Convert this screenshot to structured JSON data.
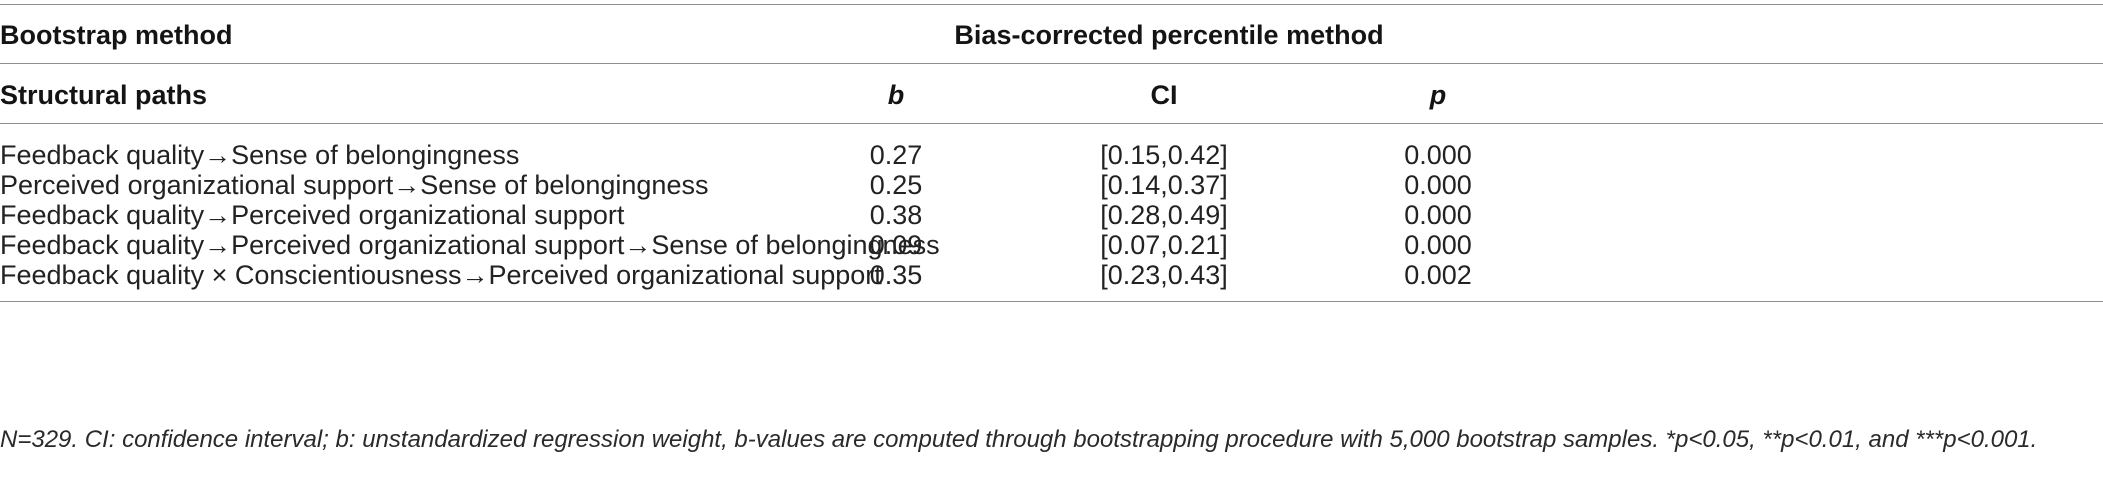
{
  "table": {
    "header_row1": {
      "left": "Bootstrap method",
      "right": "Bias-corrected percentile method"
    },
    "header_row2": {
      "paths": "Structural paths",
      "b": "b",
      "ci": "CI",
      "p": "p"
    },
    "rows": [
      {
        "path": "Feedback quality→Sense of belongingness",
        "b": "0.27",
        "ci": "[0.15,0.42]",
        "p": "0.000"
      },
      {
        "path": "Perceived organizational support→Sense of belongingness",
        "b": "0.25",
        "ci": "[0.14,0.37]",
        "p": "0.000"
      },
      {
        "path": "Feedback quality→Perceived organizational support",
        "b": "0.38",
        "ci": "[0.28,0.49]",
        "p": "0.000"
      },
      {
        "path": "Feedback quality→Perceived organizational support→Sense of belongingness",
        "b": "0.09",
        "ci": "[0.07,0.21]",
        "p": "0.000"
      },
      {
        "path": "Feedback quality × Conscientiousness→Perceived organizational support",
        "b": "0.35",
        "ci": "[0.23,0.43]",
        "p": "0.002"
      }
    ]
  },
  "footnote": "N=329. CI: confidence interval; b: unstandardized regression weight, b-values are computed through bootstrapping procedure with 5,000 bootstrap samples. *p<0.05, **p<0.01, and ***p<0.001."
}
